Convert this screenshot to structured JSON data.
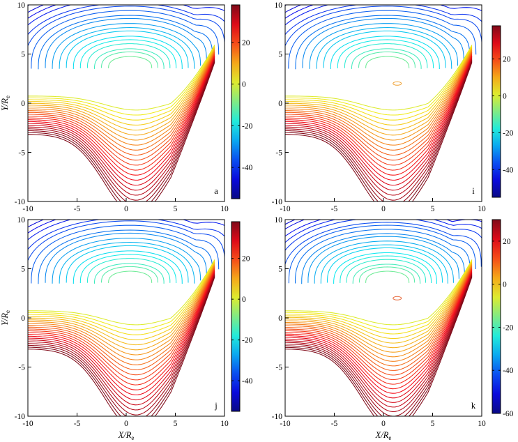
{
  "figure": {
    "panels": [
      {
        "label": "a",
        "ylabel_show": true,
        "xlabel_show": false,
        "cbar_ticks": [
          "20",
          "0",
          "-20",
          "-40"
        ]
      },
      {
        "label": "i",
        "ylabel_show": false,
        "xlabel_show": false,
        "cbar_ticks": [
          "20",
          "0",
          "-20",
          "-40"
        ]
      },
      {
        "label": "j",
        "ylabel_show": true,
        "xlabel_show": true,
        "cbar_ticks": [
          "20",
          "0",
          "-20",
          "-40"
        ]
      },
      {
        "label": "k",
        "ylabel_show": false,
        "xlabel_show": true,
        "cbar_ticks": [
          "20",
          "0",
          "-20",
          "-40",
          "-60"
        ]
      }
    ],
    "xlabel_main": "X/R",
    "xlabel_sub": "e",
    "ylabel_main": "Y/R",
    "ylabel_sub": "e"
  },
  "chart_data": [
    {
      "type": "contour",
      "panel": "a",
      "xlim": [
        -10,
        10
      ],
      "ylim": [
        -10,
        10
      ],
      "xticks": [
        "-10",
        "-5",
        "0",
        "5",
        "10"
      ],
      "yticks": [
        "-10",
        "-5",
        "0",
        "5",
        "10"
      ],
      "colorbar": {
        "range": [
          -55,
          38
        ],
        "ticks": [
          20,
          0,
          -20,
          -40
        ],
        "colormap": "jet"
      },
      "levels_per_side": 22
    },
    {
      "type": "contour",
      "panel": "i",
      "xlim": [
        -10,
        10
      ],
      "ylim": [
        -10,
        10
      ],
      "xticks": [
        "-10",
        "-5",
        "0",
        "5",
        "10"
      ],
      "yticks": [
        "-10",
        "-5",
        "0",
        "5",
        "10"
      ],
      "colorbar": {
        "range": [
          -55,
          38
        ],
        "ticks": [
          20,
          0,
          -20,
          -40
        ],
        "colormap": "jet"
      },
      "levels_per_side": 22
    },
    {
      "type": "contour",
      "panel": "j",
      "xlim": [
        -10,
        10
      ],
      "ylim": [
        -10,
        10
      ],
      "xticks": [
        "-10",
        "-5",
        "0",
        "5",
        "10"
      ],
      "yticks": [
        "-10",
        "-5",
        "0",
        "5",
        "10"
      ],
      "colorbar": {
        "range": [
          -55,
          38
        ],
        "ticks": [
          20,
          0,
          -20,
          -40
        ],
        "colormap": "jet"
      },
      "levels_per_side": 22
    },
    {
      "type": "contour",
      "panel": "k",
      "xlim": [
        -10,
        10
      ],
      "ylim": [
        -10,
        10
      ],
      "xticks": [
        "-10",
        "-5",
        "0",
        "5",
        "10"
      ],
      "yticks": [
        "-10",
        "-5",
        "0",
        "5",
        "10"
      ],
      "colorbar": {
        "range": [
          -60,
          30
        ],
        "ticks": [
          20,
          0,
          -20,
          -40,
          -60
        ],
        "colormap": "jet"
      },
      "levels_per_side": 24
    }
  ]
}
